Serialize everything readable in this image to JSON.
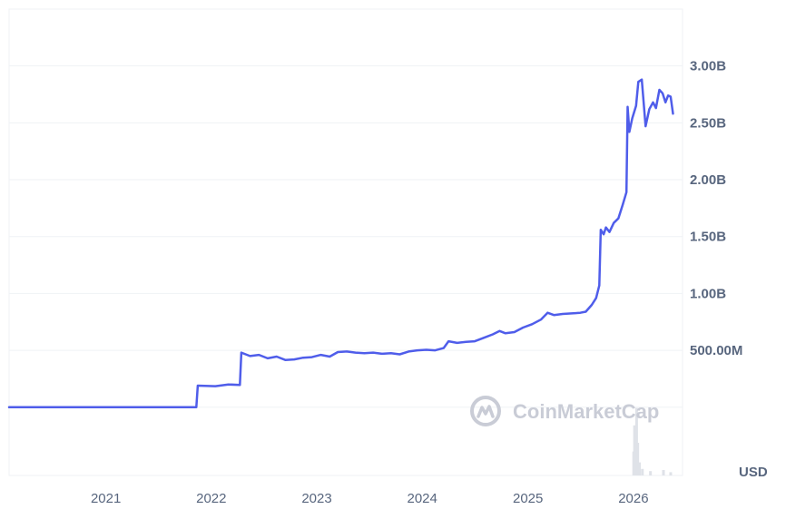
{
  "watermark": "CoinMarketCap",
  "currency_label": "USD",
  "colors": {
    "line": "#4f5dea",
    "grid": "#eff2f5",
    "text": "#58667e",
    "volume": "#dfe2e8",
    "watermark": "#c9ccd6"
  },
  "chart_data": {
    "type": "line",
    "title": "",
    "xlabel": "",
    "ylabel": "",
    "ylim": [
      -600000000,
      3500000000
    ],
    "x_range": [
      "2020-02-01",
      "2026-06-20"
    ],
    "y_ticks": [
      {
        "value": 500000000,
        "label": "500.00M"
      },
      {
        "value": 1000000000,
        "label": "1.00B"
      },
      {
        "value": 1500000000,
        "label": "1.50B"
      },
      {
        "value": 2000000000,
        "label": "2.00B"
      },
      {
        "value": 2500000000,
        "label": "2.50B"
      },
      {
        "value": 3000000000,
        "label": "3.00B"
      }
    ],
    "x_ticks": [
      {
        "value": "2021-01-01",
        "label": "2021"
      },
      {
        "value": "2022-01-01",
        "label": "2022"
      },
      {
        "value": "2023-01-01",
        "label": "2023"
      },
      {
        "value": "2024-01-01",
        "label": "2024"
      },
      {
        "value": "2025-01-01",
        "label": "2025"
      },
      {
        "value": "2026-01-01",
        "label": "2026"
      }
    ],
    "grid": true,
    "series": [
      {
        "points": [
          [
            "2020-02-01",
            0
          ],
          [
            "2021-11-10",
            0
          ],
          [
            "2021-11-15",
            190000000
          ],
          [
            "2022-01-15",
            185000000
          ],
          [
            "2022-03-01",
            200000000
          ],
          [
            "2022-04-10",
            195000000
          ],
          [
            "2022-04-15",
            480000000
          ],
          [
            "2022-05-15",
            450000000
          ],
          [
            "2022-06-15",
            460000000
          ],
          [
            "2022-07-15",
            430000000
          ],
          [
            "2022-08-15",
            445000000
          ],
          [
            "2022-09-15",
            415000000
          ],
          [
            "2022-10-15",
            420000000
          ],
          [
            "2022-11-15",
            435000000
          ],
          [
            "2022-12-15",
            440000000
          ],
          [
            "2023-01-15",
            460000000
          ],
          [
            "2023-02-15",
            445000000
          ],
          [
            "2023-03-15",
            485000000
          ],
          [
            "2023-04-15",
            490000000
          ],
          [
            "2023-05-15",
            480000000
          ],
          [
            "2023-06-15",
            475000000
          ],
          [
            "2023-07-15",
            480000000
          ],
          [
            "2023-08-15",
            470000000
          ],
          [
            "2023-09-15",
            475000000
          ],
          [
            "2023-10-15",
            465000000
          ],
          [
            "2023-11-15",
            490000000
          ],
          [
            "2023-12-15",
            500000000
          ],
          [
            "2024-01-15",
            505000000
          ],
          [
            "2024-02-15",
            500000000
          ],
          [
            "2024-03-15",
            520000000
          ],
          [
            "2024-04-01",
            580000000
          ],
          [
            "2024-05-01",
            565000000
          ],
          [
            "2024-06-01",
            575000000
          ],
          [
            "2024-07-01",
            580000000
          ],
          [
            "2024-08-01",
            610000000
          ],
          [
            "2024-09-01",
            640000000
          ],
          [
            "2024-09-25",
            670000000
          ],
          [
            "2024-10-15",
            650000000
          ],
          [
            "2024-11-15",
            660000000
          ],
          [
            "2024-12-15",
            700000000
          ],
          [
            "2025-01-15",
            730000000
          ],
          [
            "2025-02-15",
            770000000
          ],
          [
            "2025-03-10",
            830000000
          ],
          [
            "2025-04-01",
            810000000
          ],
          [
            "2025-05-01",
            820000000
          ],
          [
            "2025-06-01",
            825000000
          ],
          [
            "2025-07-01",
            830000000
          ],
          [
            "2025-07-20",
            840000000
          ],
          [
            "2025-08-10",
            900000000
          ],
          [
            "2025-08-25",
            960000000
          ],
          [
            "2025-09-05",
            1070000000
          ],
          [
            "2025-09-10",
            1560000000
          ],
          [
            "2025-09-20",
            1520000000
          ],
          [
            "2025-09-28",
            1580000000
          ],
          [
            "2025-10-10",
            1540000000
          ],
          [
            "2025-10-25",
            1620000000
          ],
          [
            "2025-11-10",
            1660000000
          ],
          [
            "2025-11-25",
            1780000000
          ],
          [
            "2025-12-08",
            1890000000
          ],
          [
            "2025-12-12",
            2640000000
          ],
          [
            "2025-12-18",
            2420000000
          ],
          [
            "2025-12-28",
            2540000000
          ],
          [
            "2026-01-10",
            2650000000
          ],
          [
            "2026-01-18",
            2860000000
          ],
          [
            "2026-01-30",
            2880000000
          ],
          [
            "2026-02-12",
            2470000000
          ],
          [
            "2026-02-25",
            2620000000
          ],
          [
            "2026-03-10",
            2680000000
          ],
          [
            "2026-03-20",
            2630000000
          ],
          [
            "2026-04-01",
            2790000000
          ],
          [
            "2026-04-12",
            2760000000
          ],
          [
            "2026-04-22",
            2680000000
          ],
          [
            "2026-05-01",
            2740000000
          ],
          [
            "2026-05-10",
            2730000000
          ],
          [
            "2026-05-18",
            2580000000
          ]
        ]
      }
    ],
    "volume": [
      [
        "2026-01-02",
        0.22
      ],
      [
        "2026-01-05",
        0.46
      ],
      [
        "2026-01-08",
        0.38
      ],
      [
        "2026-01-12",
        0.62
      ],
      [
        "2026-01-16",
        0.3
      ],
      [
        "2026-01-22",
        0.12
      ],
      [
        "2026-02-01",
        0.06
      ],
      [
        "2026-03-01",
        0.04
      ],
      [
        "2026-04-15",
        0.05
      ],
      [
        "2026-05-10",
        0.03
      ]
    ]
  }
}
